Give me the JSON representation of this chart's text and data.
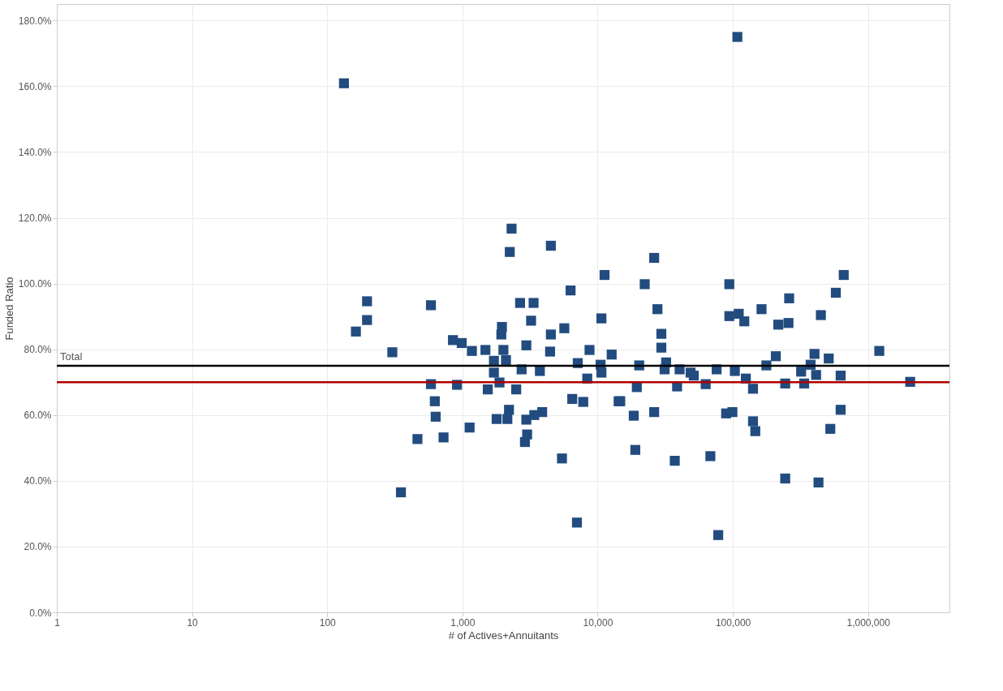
{
  "chart_data": {
    "type": "scatter",
    "xlabel": "# of Actives+Annuitants",
    "ylabel": "Funded Ratio",
    "log": "x",
    "grid": true,
    "marker": "square",
    "xlim": [
      1,
      4000000
    ],
    "xticks": [
      1,
      10,
      100,
      {
        "value": 1000,
        "label": "1,000"
      },
      {
        "value": 10000,
        "label": "10,000"
      },
      {
        "value": 100000,
        "label": "100,000"
      },
      {
        "value": 1000000,
        "label": "1,000,000"
      }
    ],
    "ylim": [
      0,
      185
    ],
    "yticks": [
      {
        "value": 0,
        "label": "0.0%"
      },
      {
        "value": 20,
        "label": "20.0%"
      },
      {
        "value": 40,
        "label": "40.0%"
      },
      {
        "value": 60,
        "label": "60.0%"
      },
      {
        "value": 80,
        "label": "80.0%"
      },
      {
        "value": 100,
        "label": "100.0%"
      },
      {
        "value": 120,
        "label": "120.0%"
      },
      {
        "value": 140,
        "label": "140.0%"
      },
      {
        "value": 160,
        "label": "160.0%"
      },
      {
        "value": 180,
        "label": "180.0%"
      }
    ],
    "ref_lines": [
      {
        "axis": "y",
        "value": 75,
        "label": "Total",
        "color": "#000000"
      },
      {
        "axis": "y",
        "value": 70,
        "color": "#b00000"
      }
    ],
    "series": [
      {
        "color": "#224c7f",
        "x": [
          133,
          108000,
          2310,
          2240,
          4510,
          11250,
          6310,
          197,
          585,
          2670,
          3360,
          197,
          163,
          3220,
          10670,
          1960,
          1940,
          4510,
          5670,
          851,
          988,
          1175,
          1480,
          303,
          2010,
          2970,
          4450,
          8710,
          12700,
          1710,
          2100,
          7130,
          10520,
          10670,
          2740,
          3740,
          1710,
          8380,
          1880,
          585,
          912,
          1540,
          2500,
          625,
          6490,
          7830,
          14300,
          634,
          2210,
          1790,
          2150,
          2970,
          3400,
          3890,
          1130,
          465,
          725,
          3010,
          2900,
          5450,
          351,
          7030,
          26200,
          22300,
          94200,
          661000,
          578000,
          261000,
          27700,
          163000,
          94200,
          110600,
          121600,
          217000,
          258000,
          448000,
          29600,
          29600,
          1211000,
          208000,
          402000,
          512000,
          177000,
          376000,
          20300,
          32100,
          31300,
          40400,
          48700,
          51400,
          75900,
          103500,
          124800,
          320000,
          413000,
          627000,
          63000,
          141000,
          244000,
          337000,
          2050000,
          19500,
          38700,
          14700,
          18500,
          26200,
          89200,
          99300,
          141000,
          146600,
          627000,
          526000,
          19000,
          37200,
          68200,
          244000,
          430000,
          78000
        ],
        "values": [
          160.9,
          175.0,
          116.7,
          109.6,
          111.5,
          102.6,
          97.9,
          94.6,
          93.4,
          94.1,
          94.1,
          88.9,
          85.4,
          88.7,
          89.4,
          86.8,
          84.5,
          84.5,
          86.4,
          82.8,
          81.9,
          79.5,
          79.8,
          79.1,
          79.8,
          81.2,
          79.3,
          79.8,
          78.4,
          76.5,
          76.7,
          75.8,
          75.3,
          72.9,
          73.9,
          73.4,
          72.9,
          71.1,
          69.9,
          69.4,
          69.2,
          67.8,
          67.8,
          64.2,
          64.9,
          64.0,
          64.2,
          59.5,
          61.6,
          58.8,
          58.8,
          58.6,
          60.0,
          60.9,
          56.2,
          52.7,
          53.2,
          54.1,
          51.8,
          46.8,
          36.5,
          27.3,
          107.8,
          99.8,
          99.8,
          102.6,
          97.2,
          95.5,
          92.2,
          92.2,
          90.1,
          90.8,
          88.5,
          87.5,
          88.0,
          90.4,
          84.7,
          80.5,
          79.5,
          77.9,
          78.6,
          77.2,
          75.1,
          75.3,
          75.1,
          76.0,
          73.9,
          73.9,
          72.9,
          72.0,
          73.9,
          73.4,
          71.1,
          73.2,
          72.2,
          72.0,
          69.4,
          68.0,
          69.6,
          69.6,
          70.1,
          68.5,
          68.7,
          64.2,
          59.8,
          60.9,
          60.5,
          60.9,
          58.1,
          55.1,
          61.6,
          55.8,
          49.4,
          46.1,
          47.5,
          40.7,
          39.5,
          23.5
        ]
      }
    ]
  }
}
